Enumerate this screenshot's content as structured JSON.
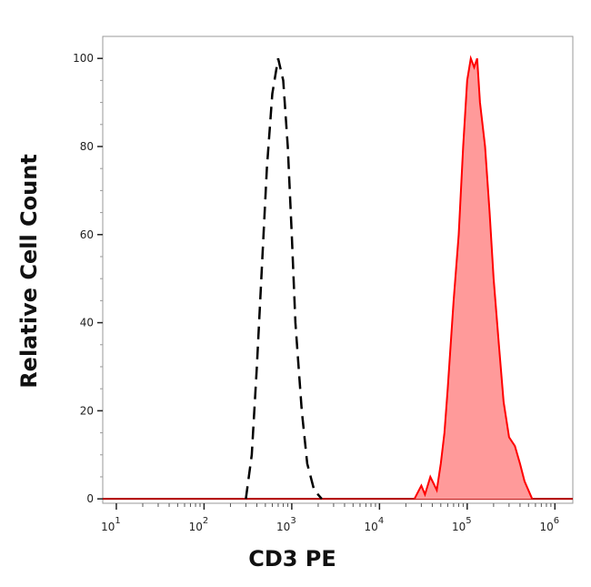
{
  "chart_data": {
    "type": "area",
    "title": "",
    "xlabel": "CD3 PE",
    "ylabel": "Relative Cell Count",
    "xscale": "log",
    "xlim": [
      7,
      1600000
    ],
    "ylim": [
      -1,
      105
    ],
    "grid": false,
    "legend": "none",
    "x_ticks": [
      {
        "value": 10,
        "base": "10",
        "exp": "1"
      },
      {
        "value": 100,
        "base": "10",
        "exp": "2"
      },
      {
        "value": 1000,
        "base": "10",
        "exp": "3"
      },
      {
        "value": 10000,
        "base": "10",
        "exp": "4"
      },
      {
        "value": 100000,
        "base": "10",
        "exp": "5"
      },
      {
        "value": 1000000,
        "base": "10",
        "exp": "6"
      }
    ],
    "y_ticks": [
      0,
      20,
      40,
      60,
      80,
      100
    ],
    "series": [
      {
        "style": "dashed-line",
        "color": "#000000",
        "points": [
          [
            300,
            0
          ],
          [
            350,
            10
          ],
          [
            400,
            30
          ],
          [
            450,
            50
          ],
          [
            520,
            75
          ],
          [
            600,
            92
          ],
          [
            700,
            100
          ],
          [
            800,
            95
          ],
          [
            900,
            80
          ],
          [
            1000,
            60
          ],
          [
            1100,
            40
          ],
          [
            1300,
            20
          ],
          [
            1500,
            8
          ],
          [
            1800,
            2
          ],
          [
            2200,
            0
          ]
        ]
      },
      {
        "style": "filled-area",
        "color": "#ff0000",
        "fill": "#ff9a9a",
        "points": [
          [
            25000,
            0
          ],
          [
            30000,
            3
          ],
          [
            33000,
            1
          ],
          [
            38000,
            5
          ],
          [
            45000,
            2
          ],
          [
            50000,
            8
          ],
          [
            55000,
            15
          ],
          [
            60000,
            25
          ],
          [
            70000,
            45
          ],
          [
            80000,
            60
          ],
          [
            90000,
            80
          ],
          [
            100000,
            95
          ],
          [
            110000,
            100
          ],
          [
            120000,
            98
          ],
          [
            130000,
            100
          ],
          [
            140000,
            90
          ],
          [
            160000,
            80
          ],
          [
            180000,
            65
          ],
          [
            200000,
            50
          ],
          [
            230000,
            35
          ],
          [
            260000,
            22
          ],
          [
            300000,
            14
          ],
          [
            350000,
            12
          ],
          [
            400000,
            8
          ],
          [
            450000,
            4
          ],
          [
            550000,
            0
          ]
        ]
      }
    ]
  }
}
